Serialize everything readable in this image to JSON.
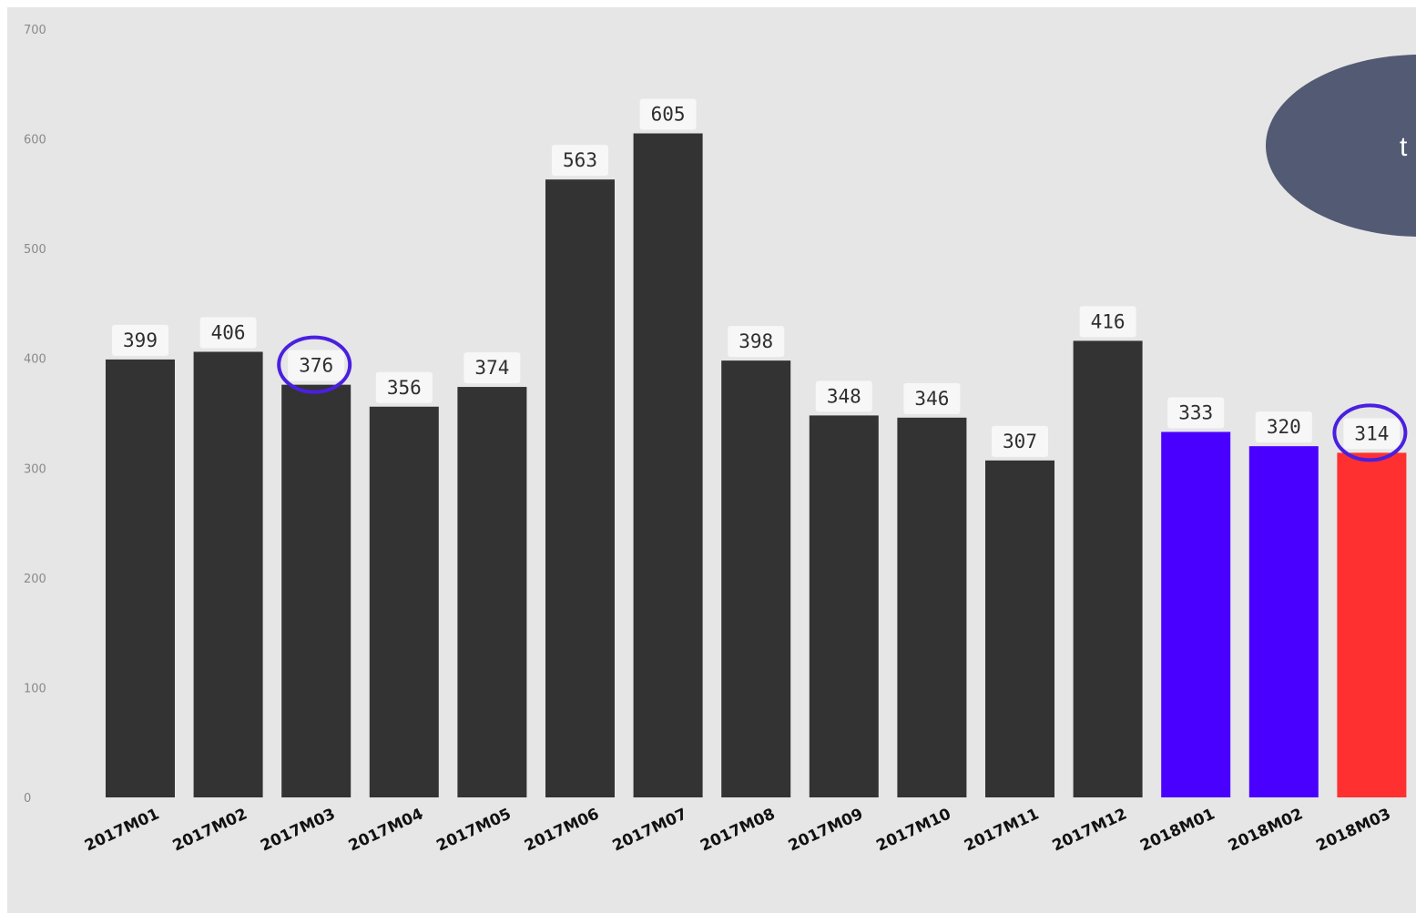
{
  "chart_data": {
    "type": "bar",
    "categories": [
      "2017M01",
      "2017M02",
      "2017M03",
      "2017M04",
      "2017M05",
      "2017M06",
      "2017M07",
      "2017M08",
      "2017M09",
      "2017M10",
      "2017M11",
      "2017M12",
      "2018M01",
      "2018M02",
      "2018M03"
    ],
    "values": [
      399,
      406,
      376,
      356,
      374,
      563,
      605,
      398,
      348,
      346,
      307,
      416,
      333,
      320,
      314
    ],
    "bar_colors": [
      "#333333",
      "#333333",
      "#333333",
      "#333333",
      "#333333",
      "#333333",
      "#333333",
      "#333333",
      "#333333",
      "#333333",
      "#333333",
      "#333333",
      "#4a00ff",
      "#4a00ff",
      "#ff3030"
    ],
    "highlighted_labels": [
      "2017M03",
      "2018M03"
    ],
    "highlight_color": "#4a1fe0",
    "ylim": [
      0,
      700
    ],
    "yticks": [
      0,
      100,
      200,
      300,
      400,
      500,
      600,
      700
    ],
    "grid": false,
    "background": "#e6e6e6",
    "data_labels": true,
    "title": "",
    "xlabel": "",
    "ylabel": ""
  },
  "callout": {
    "text": "t",
    "color": "#525b73"
  }
}
